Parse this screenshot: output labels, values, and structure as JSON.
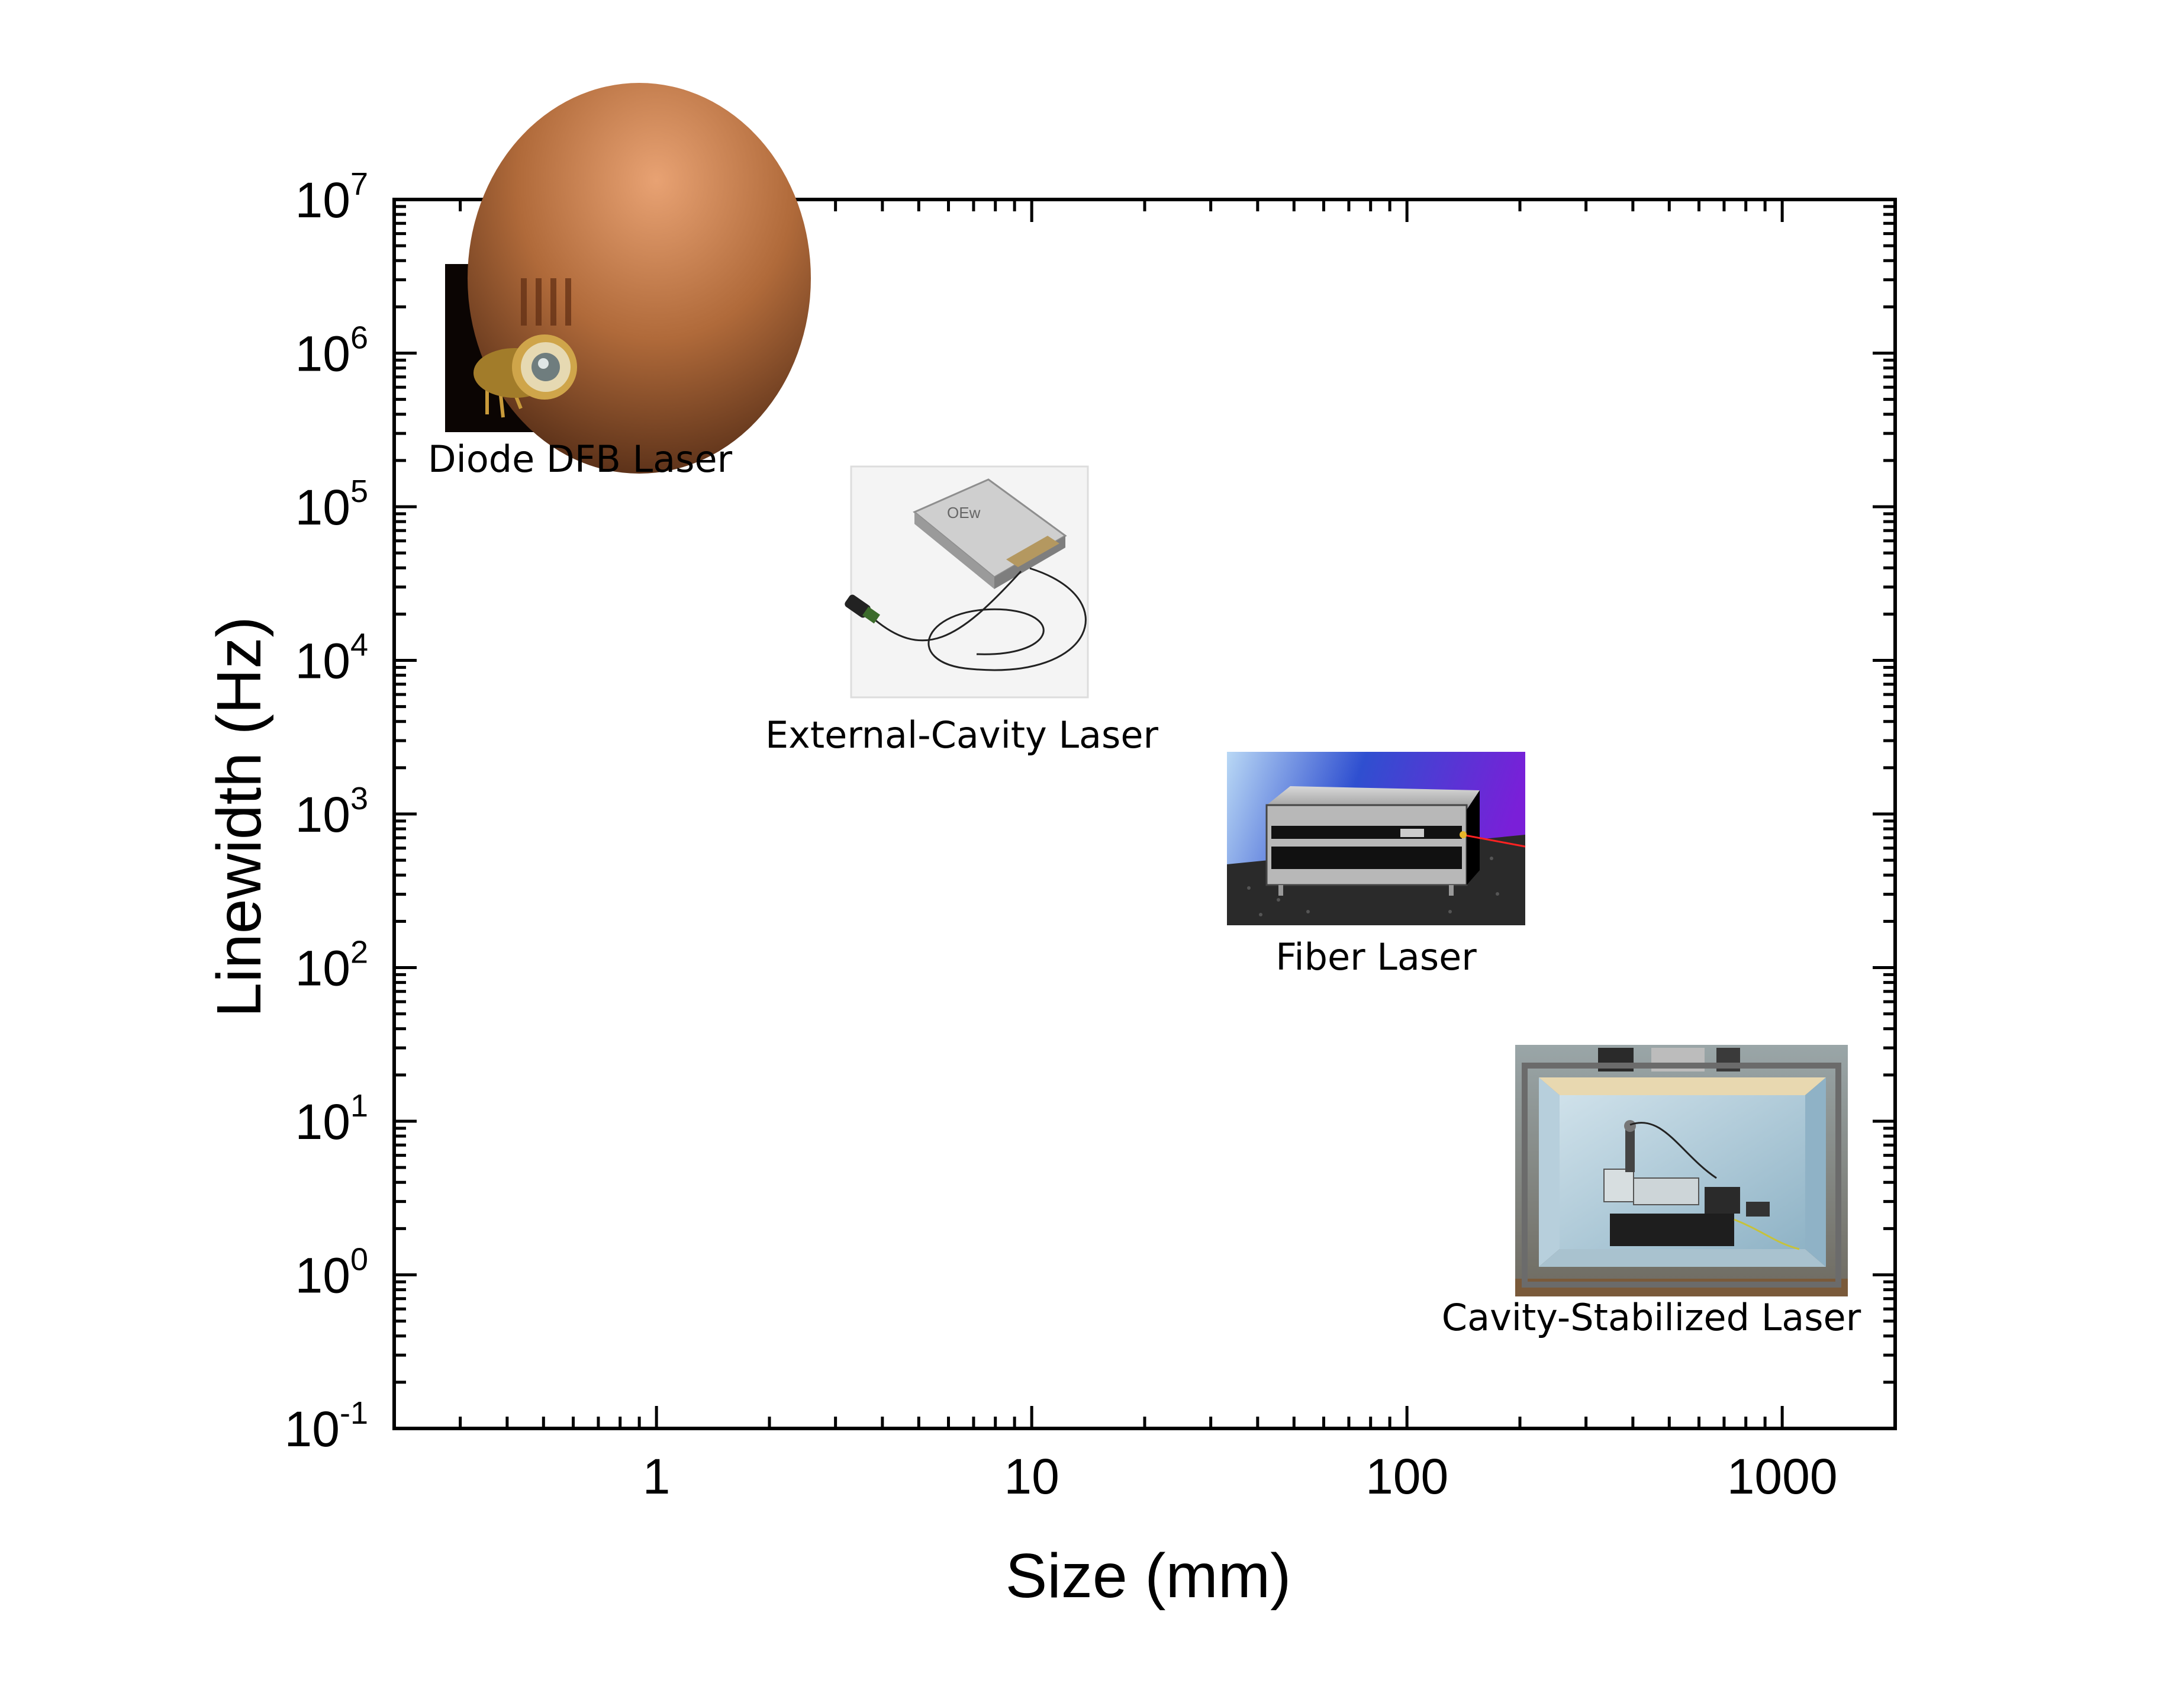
{
  "chart_data": {
    "type": "scatter",
    "title": "",
    "xlabel": "Size (mm)",
    "ylabel": "Linewidth (Hz)",
    "x_scale": "log",
    "y_scale": "log",
    "xlim": [
      0.2,
      2000
    ],
    "ylim": [
      0.1,
      10000000
    ],
    "x_ticks": [
      {
        "value": 1,
        "label": "1"
      },
      {
        "value": 10,
        "label": "10"
      },
      {
        "value": 100,
        "label": "100"
      },
      {
        "value": 1000,
        "label": "1000"
      }
    ],
    "y_ticks": [
      {
        "value": 0.1,
        "base": "10",
        "exp": "-1"
      },
      {
        "value": 1,
        "base": "10",
        "exp": "0"
      },
      {
        "value": 10,
        "base": "10",
        "exp": "1"
      },
      {
        "value": 100,
        "base": "10",
        "exp": "2"
      },
      {
        "value": 1000,
        "base": "10",
        "exp": "3"
      },
      {
        "value": 10000,
        "base": "10",
        "exp": "4"
      },
      {
        "value": 100000,
        "base": "10",
        "exp": "5"
      },
      {
        "value": 1000000,
        "base": "10",
        "exp": "6"
      },
      {
        "value": 10000000,
        "base": "10",
        "exp": "7"
      }
    ],
    "grid": false,
    "legend": "none",
    "points": [
      {
        "label": "Diode DFB Laser",
        "x": 0.4,
        "y": 700000,
        "image": "diode-laser-photo"
      },
      {
        "label": "External-Cavity Laser",
        "x": 3.5,
        "y": 20000,
        "image": "external-cavity-laser-photo"
      },
      {
        "label": "Fiber Laser",
        "x": 60,
        "y": 700,
        "image": "fiber-laser-photo"
      },
      {
        "label": "Cavity-Stabilized Laser",
        "x": 600,
        "y": 5,
        "image": "cavity-stabilized-laser-photo"
      }
    ]
  }
}
